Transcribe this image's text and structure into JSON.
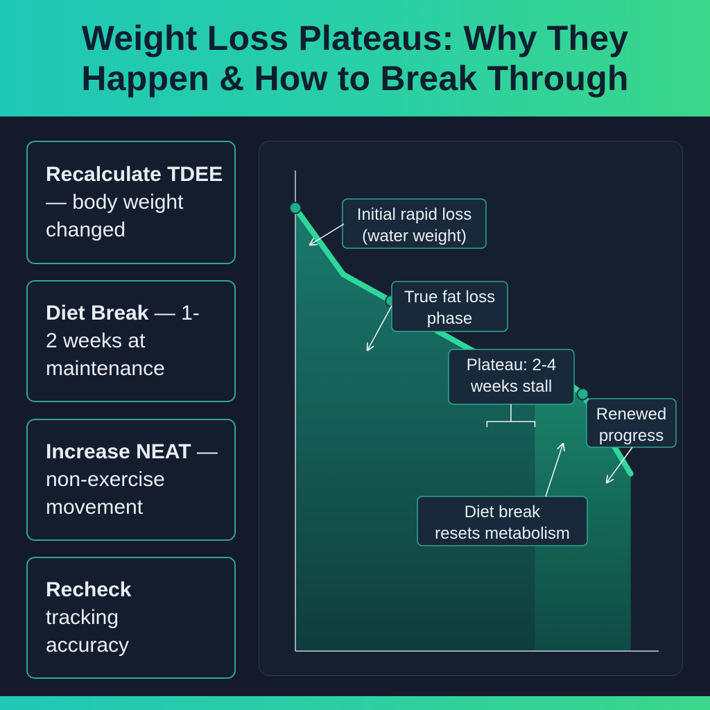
{
  "title_lines": [
    "Weight Loss Plateaus: Why They",
    "Happen & How to Break Through"
  ],
  "tips": [
    {
      "bold": "Recalculate TDEE",
      "rest": " — body weight changed"
    },
    {
      "bold": "Diet Break",
      "rest": " — 1-2 weeks at maintenance"
    },
    {
      "bold": "Increase NEAT",
      "rest": " — non-exercise movement"
    },
    {
      "bold": "Recheck",
      "rest": " tracking accuracy"
    }
  ],
  "chart_data": {
    "type": "area",
    "x": [
      0,
      1,
      2,
      3,
      4,
      5,
      6,
      7
    ],
    "values": [
      100,
      85,
      79,
      72,
      66,
      66,
      58,
      40
    ],
    "marked_points": [
      0,
      2,
      4,
      5,
      6
    ],
    "xlim": [
      0,
      7.7
    ],
    "ylim": [
      0,
      110
    ],
    "grid": false,
    "annotations": [
      {
        "lines": [
          "Initial rapid loss",
          "(water weight)"
        ],
        "point": 0
      },
      {
        "lines": [
          "True fat loss",
          "phase"
        ],
        "point": 2
      },
      {
        "lines": [
          "Plateau: 2-4",
          "weeks stall"
        ],
        "span": [
          4,
          5
        ]
      },
      {
        "lines": [
          "Renewed",
          "progress"
        ],
        "point": 6
      },
      {
        "lines": [
          "Diet break",
          "resets metabolism"
        ],
        "point": 5
      }
    ],
    "colors": {
      "line": "#2fd79a",
      "fill_top": "#1a7a6c",
      "fill_bottom": "#0f3d3d",
      "highlight_fill": "#1a8a6e",
      "annotation_border": "#2fa592",
      "annotation_bg": "#17293a"
    }
  }
}
